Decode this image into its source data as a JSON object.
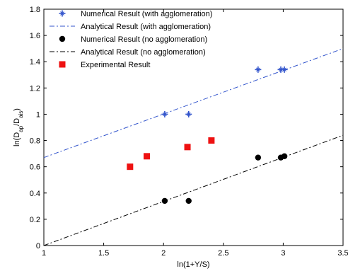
{
  "chart_data": {
    "type": "scatter",
    "xlabel": "ln(1+Y/S)",
    "ylabel": {
      "prefix": "ln(D",
      "sub1": "ap",
      "mid": "/D",
      "sub2": "ais",
      "suffix": ")"
    },
    "xlim": [
      1,
      3.5
    ],
    "ylim": [
      0,
      1.8
    ],
    "xticks": [
      "1",
      "1.5",
      "2",
      "2.5",
      "3",
      "3.5"
    ],
    "yticks": [
      "0",
      "0.2",
      "0.4",
      "0.6",
      "0.8",
      "1",
      "1.2",
      "1.4",
      "1.6",
      "1.8"
    ],
    "grid": false,
    "legend_position": "top-left",
    "series": [
      {
        "name": "Numerical Result (with agglomeration)",
        "kind": "points",
        "marker": "star",
        "color": "#3355cc",
        "x": [
          2.01,
          2.21,
          2.79,
          2.98,
          3.01
        ],
        "y": [
          1.0,
          1.0,
          1.34,
          1.34,
          1.34
        ]
      },
      {
        "name": "Analytical Result (with agglomeration)",
        "kind": "line",
        "style": "dashdot",
        "color": "#3355cc",
        "x": [
          1,
          3.5
        ],
        "y": [
          0.67,
          1.5
        ]
      },
      {
        "name": "Numerical Result (no agglomeration)",
        "kind": "points",
        "marker": "circle",
        "color": "#000000",
        "x": [
          2.01,
          2.21,
          2.79,
          2.98,
          3.01
        ],
        "y": [
          0.34,
          0.34,
          0.67,
          0.67,
          0.68
        ]
      },
      {
        "name": "Analytical Result (no agglomeration)",
        "kind": "line",
        "style": "dashdot",
        "color": "#000000",
        "x": [
          1,
          3.5
        ],
        "y": [
          0,
          0.84
        ]
      },
      {
        "name": "Experimental Result",
        "kind": "points",
        "marker": "square",
        "color": "#ee1111",
        "x": [
          1.72,
          1.86,
          2.2,
          2.4
        ],
        "y": [
          0.6,
          0.68,
          0.75,
          0.8
        ]
      }
    ]
  }
}
